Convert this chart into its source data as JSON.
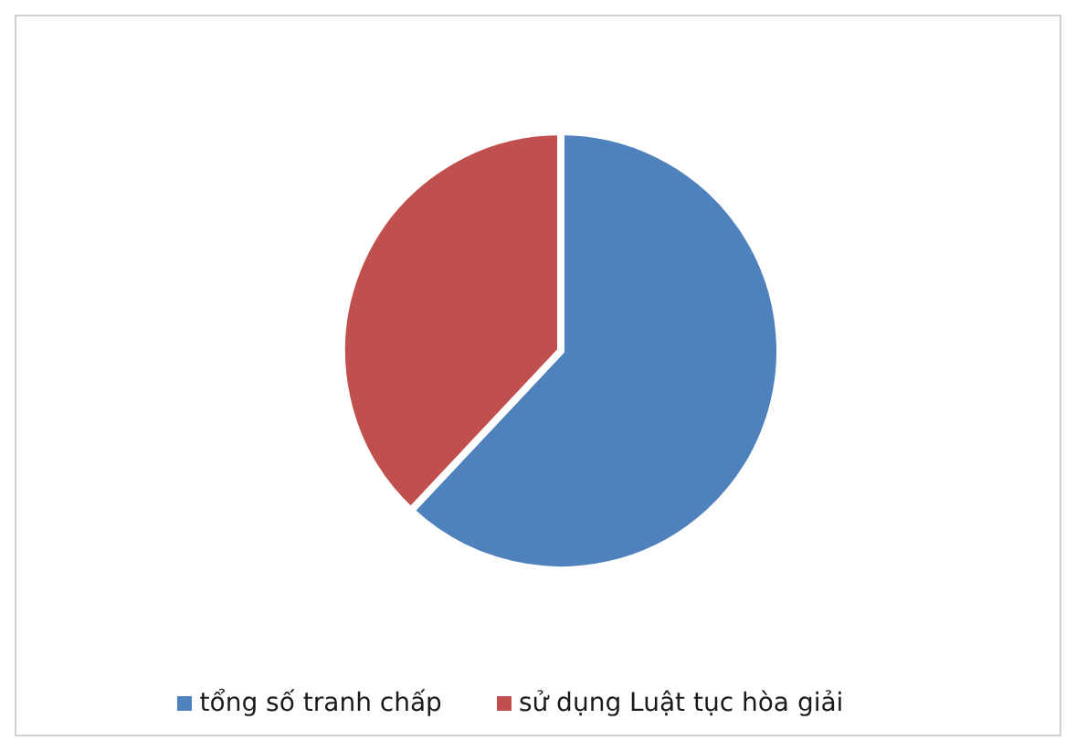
{
  "chart_data": {
    "type": "pie",
    "categories": [
      "tổng số tranh chấp",
      "sử dụng Luật tục hòa giải"
    ],
    "values": [
      62,
      38
    ],
    "colors": [
      "#4f81bd",
      "#c0504d"
    ],
    "legend": "bottom"
  }
}
